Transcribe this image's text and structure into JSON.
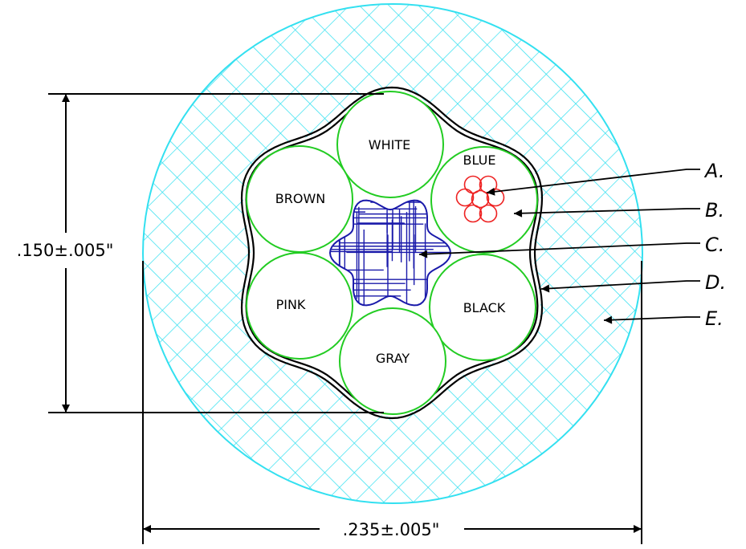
{
  "colors": {
    "jacket": "#33e0f0",
    "conductor": "#22cc22",
    "strand": "#ee2222",
    "filler": "#1a1aaa",
    "line": "#000000"
  },
  "conductors": [
    {
      "name": "white",
      "label": "WHITE"
    },
    {
      "name": "blue",
      "label": "BLUE"
    },
    {
      "name": "black",
      "label": "BLACK"
    },
    {
      "name": "gray",
      "label": "GRAY"
    },
    {
      "name": "pink",
      "label": "PINK"
    },
    {
      "name": "brown",
      "label": "BROWN"
    }
  ],
  "dimensions": {
    "height": ".150±.005\"",
    "width": ".235±.005\""
  },
  "callouts": [
    {
      "id": "a",
      "label": "A."
    },
    {
      "id": "b",
      "label": "B."
    },
    {
      "id": "c",
      "label": "C."
    },
    {
      "id": "d",
      "label": "D."
    },
    {
      "id": "e",
      "label": "E."
    }
  ]
}
